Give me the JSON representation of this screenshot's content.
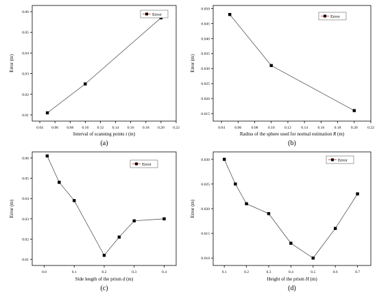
{
  "chart_data": [
    {
      "type": "line",
      "panel_label": "(a)",
      "xlabel": "Interval of scanning points ",
      "xlabel_var": "t",
      "xlabel_unit": " (m)",
      "ylabel": "Error (m)",
      "xlim": [
        0.03,
        0.22
      ],
      "ylim": [
        0.007,
        0.063
      ],
      "xticks": [
        0.04,
        0.06,
        0.08,
        0.1,
        0.12,
        0.14,
        0.16,
        0.18,
        0.2,
        0.22
      ],
      "xtick_labels": [
        "0.04",
        "0.06",
        "0.08",
        "0.10",
        "0.12",
        "0.14",
        "0.16",
        "0.18",
        "0.20",
        "0.22"
      ],
      "yticks": [
        0.01,
        0.02,
        0.03,
        0.04,
        0.05,
        0.06
      ],
      "ytick_labels": [
        "0.01",
        "0.02",
        "0.03",
        "0.04",
        "0.05",
        "0.06"
      ],
      "series": [
        {
          "name": "Error",
          "x": [
            0.05,
            0.1,
            0.2
          ],
          "y": [
            0.011,
            0.025,
            0.057
          ]
        }
      ],
      "legend": "top-right",
      "grid": false
    },
    {
      "type": "line",
      "panel_label": "(b)",
      "xlabel": "Radius of the sphere used for normal estimation ",
      "xlabel_var": "R",
      "xlabel_unit": " (m)",
      "ylabel": "Error (m)",
      "xlim": [
        0.03,
        0.22
      ],
      "ylim": [
        0.0125,
        0.051
      ],
      "xticks": [
        0.04,
        0.06,
        0.08,
        0.1,
        0.12,
        0.14,
        0.16,
        0.18,
        0.2,
        0.22
      ],
      "xtick_labels": [
        "0.04",
        "0.06",
        "0.08",
        "0.10",
        "0.12",
        "0.14",
        "0.16",
        "0.18",
        "0.20",
        "0.22"
      ],
      "yticks": [
        0.015,
        0.02,
        0.025,
        0.03,
        0.035,
        0.04,
        0.045,
        0.05
      ],
      "ytick_labels": [
        "0.015",
        "0.020",
        "0.025",
        "0.030",
        "0.035",
        "0.040",
        "0.045",
        "0.050"
      ],
      "series": [
        {
          "name": "Error",
          "x": [
            0.05,
            0.1,
            0.2
          ],
          "y": [
            0.048,
            0.031,
            0.016
          ]
        }
      ],
      "legend": "top-right",
      "grid": false
    },
    {
      "type": "line",
      "panel_label": "(c)",
      "xlabel": "Side length of the prism ",
      "xlabel_var": "d",
      "xlabel_unit": " (m)",
      "ylabel": "Error (m)",
      "xlim": [
        -0.04,
        0.44
      ],
      "ylim": [
        0.007,
        0.063
      ],
      "xticks": [
        0.0,
        0.1,
        0.2,
        0.3,
        0.4
      ],
      "xtick_labels": [
        "0.0",
        "0.1",
        "0.2",
        "0.3",
        "0.4"
      ],
      "yticks": [
        0.01,
        0.02,
        0.03,
        0.04,
        0.05,
        0.06
      ],
      "ytick_labels": [
        "0.01",
        "0.02",
        "0.03",
        "0.04",
        "0.05",
        "0.06"
      ],
      "series": [
        {
          "name": "Error",
          "x": [
            0.01,
            0.05,
            0.1,
            0.2,
            0.25,
            0.3,
            0.4
          ],
          "y": [
            0.061,
            0.048,
            0.039,
            0.012,
            0.021,
            0.029,
            0.03
          ]
        }
      ],
      "legend": "top-right",
      "grid": false
    },
    {
      "type": "line",
      "panel_label": "(d)",
      "xlabel": "Height of the prism ",
      "xlabel_var": "H",
      "xlabel_unit": " (m)",
      "ylabel": "Error (m)",
      "xlim": [
        0.05,
        0.76
      ],
      "ylim": [
        0.0085,
        0.0315
      ],
      "xticks": [
        0.1,
        0.2,
        0.3,
        0.4,
        0.5,
        0.6,
        0.7
      ],
      "xtick_labels": [
        "0.1",
        "0.2",
        "0.3",
        "0.4",
        "0.5",
        "0.6",
        "0.7"
      ],
      "yticks": [
        0.01,
        0.015,
        0.02,
        0.025,
        0.03
      ],
      "ytick_labels": [
        "0.010",
        "0.015",
        "0.020",
        "0.025",
        "0.030"
      ],
      "series": [
        {
          "name": "Error",
          "x": [
            0.1,
            0.15,
            0.2,
            0.3,
            0.4,
            0.5,
            0.6,
            0.7
          ],
          "y": [
            0.03,
            0.025,
            0.021,
            0.019,
            0.013,
            0.01,
            0.016,
            0.023
          ]
        }
      ],
      "legend": "top-right",
      "grid": false
    }
  ],
  "colors": {
    "line": "#555555",
    "marker": "#000000",
    "legend_frame": "#c62828"
  }
}
